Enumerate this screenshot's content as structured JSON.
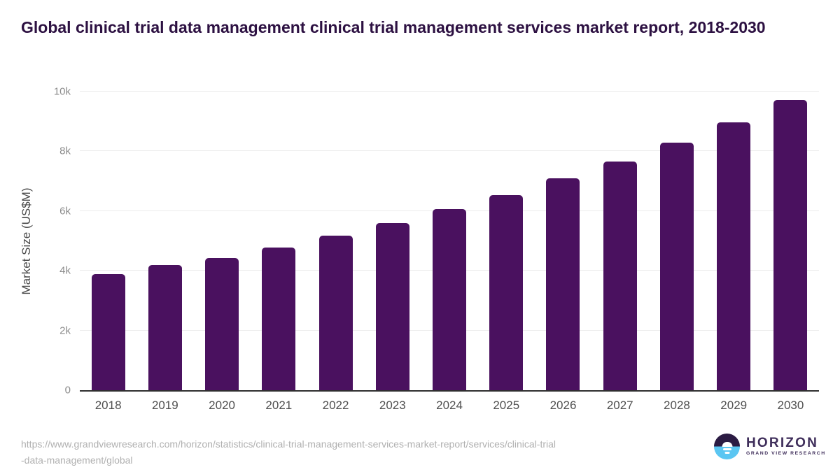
{
  "page": {
    "title": "Global clinical trial data management clinical trial management services market report, 2018-2030"
  },
  "chart_data": {
    "type": "bar",
    "title": "Global clinical trial data management clinical trial management services market report, 2018-2030",
    "categories": [
      "2018",
      "2019",
      "2020",
      "2021",
      "2022",
      "2023",
      "2024",
      "2025",
      "2026",
      "2027",
      "2028",
      "2029",
      "2030"
    ],
    "values": [
      3880,
      4190,
      4430,
      4770,
      5180,
      5590,
      6060,
      6540,
      7090,
      7660,
      8280,
      8970,
      9730
    ],
    "xlabel": "",
    "ylabel": "Market Size (US$M)",
    "ylim": [
      0,
      10000
    ],
    "y_ticks": [
      {
        "value": 0,
        "label": "0"
      },
      {
        "value": 2000,
        "label": "2k"
      },
      {
        "value": 4000,
        "label": "4k"
      },
      {
        "value": 6000,
        "label": "6k"
      },
      {
        "value": 8000,
        "label": "8k"
      },
      {
        "value": 10000,
        "label": "10k"
      }
    ],
    "grid": true,
    "legend": false,
    "bar_color": "#4a115f"
  },
  "footer": {
    "source_url_lines": [
      "https://www.grandviewresearch.com/horizon/statistics/clinical-trial-management-services-market-report/services/clinical-trial",
      "-data-management/global"
    ],
    "logo": {
      "brand": "HORIZON",
      "sub_brand": "GRAND VIEW RESEARCH"
    }
  },
  "colors": {
    "title": "#2d1142",
    "bar": "#4a115f",
    "logo_dark": "#2b1b43",
    "logo_blue": "#5bc6f2",
    "logo_text": "#3e2d5a"
  }
}
